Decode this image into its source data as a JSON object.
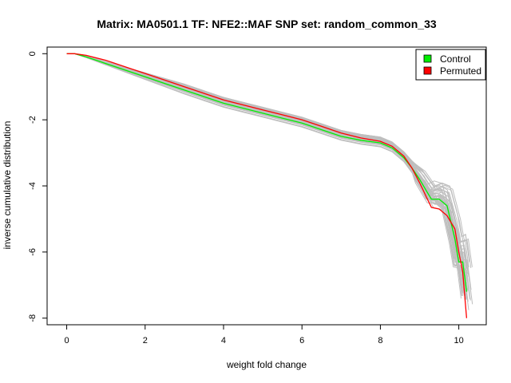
{
  "chart_data": {
    "type": "line",
    "title": "Matrix: MA0501.1 TF: NFE2::MAF SNP set: random_common_33",
    "xlabel": "weight fold change",
    "ylabel": "inverse cumulative distribution",
    "xlim": [
      -0.5,
      10.7
    ],
    "ylim": [
      -8.2,
      0.2
    ],
    "xticks": [
      "0",
      "2",
      "4",
      "6",
      "8",
      "10"
    ],
    "yticks": [
      "0",
      "-2",
      "-4",
      "-6",
      "-8"
    ],
    "grid": false,
    "legend": {
      "position": "top-right",
      "entries": [
        {
          "label": "Control",
          "color": "#00ee00"
        },
        {
          "label": "Permuted",
          "color": "#ff0000"
        }
      ]
    },
    "series": [
      {
        "name": "Control",
        "color": "#00ee00",
        "x": [
          0,
          0.2,
          0.5,
          1.0,
          1.5,
          2.0,
          2.5,
          3.0,
          3.5,
          4.0,
          4.5,
          5.0,
          5.5,
          6.0,
          6.5,
          7.0,
          7.5,
          8.0,
          8.3,
          8.6,
          8.8,
          9.0,
          9.2,
          9.3,
          9.5,
          9.7,
          9.9,
          10.0,
          10.1,
          10.2
        ],
        "y": [
          0,
          0,
          -0.1,
          -0.3,
          -0.5,
          -0.7,
          -0.9,
          -1.1,
          -1.3,
          -1.5,
          -1.65,
          -1.8,
          -1.95,
          -2.1,
          -2.3,
          -2.5,
          -2.62,
          -2.7,
          -2.85,
          -3.15,
          -3.45,
          -3.8,
          -4.2,
          -4.4,
          -4.4,
          -4.6,
          -5.6,
          -6.3,
          -6.3,
          -7.2
        ]
      },
      {
        "name": "Permuted",
        "color": "#ff0000",
        "x": [
          0,
          0.2,
          0.5,
          1.0,
          1.5,
          2.0,
          2.5,
          3.0,
          3.5,
          4.0,
          4.5,
          5.0,
          5.5,
          6.0,
          6.5,
          7.0,
          7.5,
          8.0,
          8.3,
          8.6,
          8.8,
          9.0,
          9.2,
          9.3,
          9.5,
          9.7,
          9.9,
          10.0,
          10.1,
          10.2
        ],
        "y": [
          0,
          0,
          -0.05,
          -0.2,
          -0.4,
          -0.6,
          -0.8,
          -1.0,
          -1.2,
          -1.4,
          -1.55,
          -1.7,
          -1.85,
          -2.0,
          -2.2,
          -2.4,
          -2.55,
          -2.65,
          -2.8,
          -3.1,
          -3.45,
          -3.9,
          -4.4,
          -4.65,
          -4.7,
          -4.9,
          -5.3,
          -6.0,
          -6.6,
          -8.0
        ]
      }
    ],
    "background_lines": {
      "count": 40,
      "color": "#bebebe"
    }
  }
}
